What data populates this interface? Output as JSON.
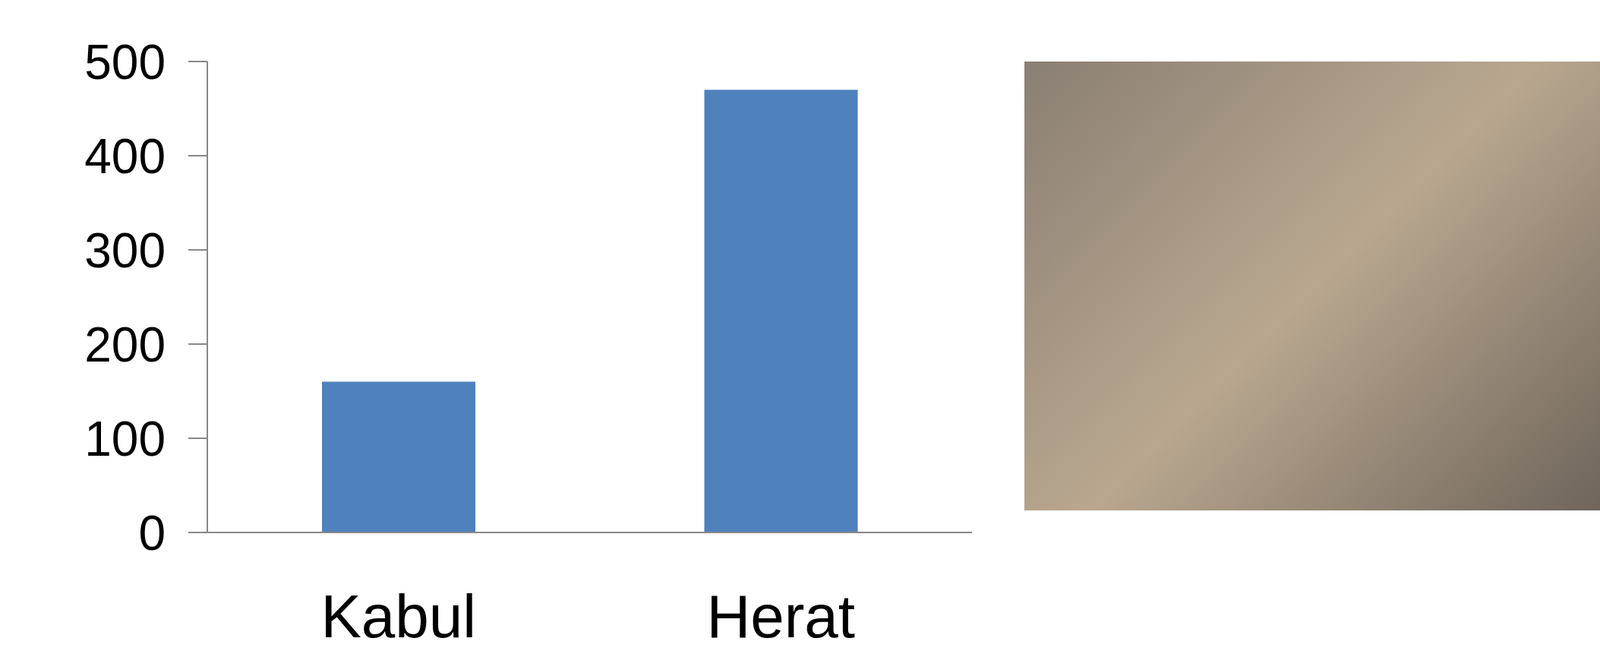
{
  "chart_data": {
    "type": "bar",
    "categories": [
      "Kabul",
      "Herat"
    ],
    "values": [
      160,
      470
    ],
    "color": "#4f81bd",
    "ylim": [
      0,
      500
    ],
    "yticks": [
      0,
      100,
      200,
      300,
      400,
      500
    ],
    "grid": false
  }
}
